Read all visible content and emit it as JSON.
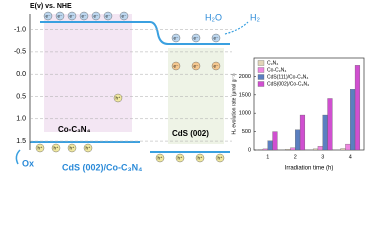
{
  "diagram": {
    "energy_axis": {
      "title": "E(v) vs. NHE",
      "ylim": [
        -1.35,
        1.7
      ],
      "yticks": [
        {
          "value": -1,
          "label": "-1.0"
        },
        -0.5,
        {
          "value": 0,
          "label": "0.0"
        },
        0.5,
        {
          "value": 1,
          "label": "1.0"
        },
        1.5
      ]
    },
    "labels": {
      "water": "H₂O",
      "hydrogen": "H₂",
      "co_c3n4": "Co-C₃N₄",
      "cds": "CdS (002)",
      "composite": "CdS (002)/Co-C₃N₄",
      "oxidation": "Ox"
    },
    "electron": "e⁻",
    "hole": "h⁺"
  },
  "chart_data": {
    "type": "bar",
    "x_label": "Irradiation time (h)",
    "y_label": "H₂ evolution rate (μmol g⁻¹)",
    "categories": [
      "1",
      "2",
      "3",
      "4"
    ],
    "series": [
      {
        "name": "C₃N₄",
        "color": "#e2d6b8",
        "values": [
          10,
          20,
          30,
          40
        ]
      },
      {
        "name": "Co-C₃N₄",
        "color": "#ee86e0",
        "values": [
          30,
          60,
          100,
          160
        ]
      },
      {
        "name": "CdS(111)/Co-C₃N₄",
        "color": "#5b7fc0",
        "values": [
          250,
          550,
          950,
          1650
        ]
      },
      {
        "name": "CdS(002)/Co-C₃N₄",
        "color": "#d04fd0",
        "values": [
          500,
          950,
          1400,
          2300
        ]
      }
    ],
    "ylim": [
      0,
      2500
    ],
    "yticks": [
      0,
      500,
      1000,
      1500,
      2000
    ],
    "legend": "upper-left"
  }
}
